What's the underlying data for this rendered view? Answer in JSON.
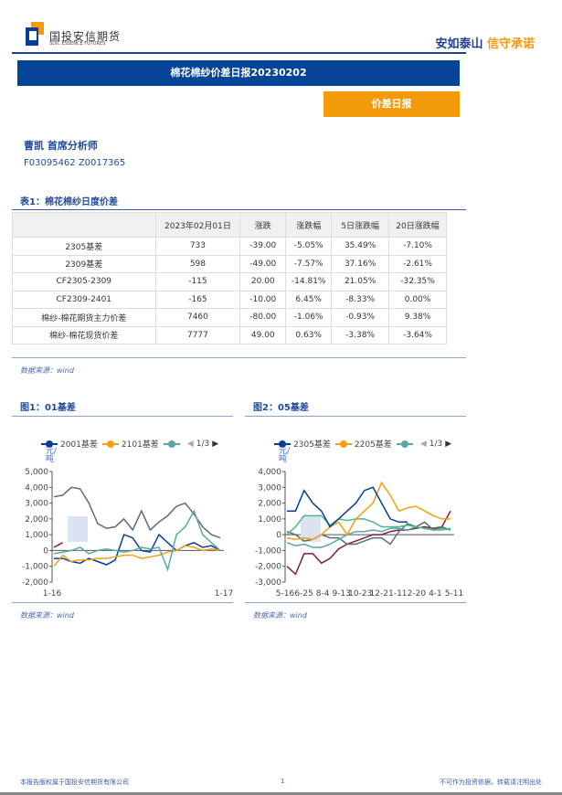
{
  "header": {
    "company_cn": "国投安信期货",
    "company_en": "SDIC ESSENCE FUTURES",
    "slogan_a": "安如泰山",
    "slogan_b": "信守承诺"
  },
  "banner": {
    "title": "棉花棉纱价差日报20230202",
    "tag": "价差日报"
  },
  "author": {
    "name": "曹凯 首席分析师",
    "ids": "F03095462 Z0017365"
  },
  "table": {
    "title": "表1：棉花棉纱日度价差",
    "headers": [
      "",
      "2023年02月01日",
      "涨跌",
      "涨跌幅",
      "5日涨跌幅",
      "20日涨跌幅"
    ],
    "rows": [
      [
        "2305基差",
        "733",
        "-39.00",
        "-5.05%",
        "35.49%",
        "-7.10%"
      ],
      [
        "2309基差",
        "598",
        "-49.00",
        "-7.57%",
        "37.16%",
        "-2.61%"
      ],
      [
        "CF2305-2309",
        "-115",
        "20.00",
        "-14.81%",
        "21.05%",
        "-32.35%"
      ],
      [
        "CF2309-2401",
        "-165",
        "-10.00",
        "6.45%",
        "-8.33%",
        "0.00%"
      ],
      [
        "棉纱-棉花期货主力价差",
        "7460",
        "-80.00",
        "-1.06%",
        "-0.93%",
        "9.38%"
      ],
      [
        "棉纱-棉花现货价差",
        "7777",
        "49.00",
        "0.63%",
        "-3.38%",
        "-3.64%"
      ]
    ],
    "source": "数据来源：wind"
  },
  "colors": {
    "navy": "#0a3d9a",
    "orange": "#f5a00f",
    "teal": "#5aa6a8",
    "gray": "#5c6b75",
    "maroon": "#7a1f45",
    "green": "#4cb88a"
  },
  "chart_data": [
    {
      "type": "line",
      "title": "图1：01基差",
      "unit": "元/吨",
      "pager": "1/3",
      "ylim": [
        -2000,
        5000
      ],
      "yticks": [
        "5,000",
        "4,000",
        "3,000",
        "2,000",
        "1,000",
        "0",
        "-1,000",
        "-2,000"
      ],
      "ytick_values": [
        5000,
        4000,
        3000,
        2000,
        1000,
        0,
        -1000,
        -2000
      ],
      "xticks": [
        "1-16",
        "1-17"
      ],
      "source": "数据来源：wind",
      "series": [
        {
          "name": "",
          "color": "gray",
          "values": [
            3400,
            3500,
            4000,
            3900,
            3000,
            1700,
            1400,
            1500,
            2000,
            1300,
            2500,
            1300,
            1800,
            2200,
            2800,
            3000,
            2300,
            1500,
            1000,
            800
          ]
        },
        {
          "name": "2001基差",
          "color": "navy",
          "values": [
            -500,
            -500,
            -700,
            -800,
            -500,
            -700,
            -900,
            -600,
            1000,
            800,
            0,
            -100,
            1000,
            500,
            0,
            300,
            500,
            200,
            300,
            0
          ]
        },
        {
          "name": "2101基差",
          "color": "orange",
          "values": [
            -1000,
            -300,
            -700,
            -600,
            -600,
            -500,
            -500,
            -400,
            -300,
            -300,
            -500,
            -400,
            -300,
            -100,
            0,
            300,
            200,
            0,
            100,
            0
          ]
        },
        {
          "name": "",
          "color": "teal",
          "values": [
            -200,
            -100,
            0,
            200,
            -200,
            0,
            100,
            0,
            -100,
            0,
            200,
            100,
            200,
            -1200,
            1000,
            1500,
            2500,
            1000,
            500,
            0
          ]
        },
        {
          "name": "",
          "color": "maroon",
          "values": [
            200,
            500,
            null,
            null,
            null,
            null,
            null,
            null,
            null,
            null,
            null,
            null,
            null,
            null,
            null,
            null,
            null,
            null,
            null,
            null
          ]
        }
      ],
      "legend": [
        {
          "name": "2001基差",
          "color": "navy"
        },
        {
          "name": "2101基差",
          "color": "orange"
        },
        {
          "name": "",
          "color": "teal"
        }
      ]
    },
    {
      "type": "line",
      "title": "图2：05基差",
      "unit": "元/吨",
      "pager": "1/3",
      "ylim": [
        -3000,
        4000
      ],
      "yticks": [
        "4,000",
        "3,000",
        "2,000",
        "1,000",
        "0",
        "-1,000",
        "-2,000",
        "-3,000"
      ],
      "ytick_values": [
        4000,
        3000,
        2000,
        1000,
        0,
        -1000,
        -2000,
        -3000
      ],
      "xticks": [
        "5-16",
        "6-25",
        "8-4",
        "9-13",
        "10-23",
        "12-2",
        "1-11",
        "2-20",
        "4-1",
        "5-11"
      ],
      "source": "数据来源：wind",
      "series": [
        {
          "name": "",
          "color": "maroon",
          "values": [
            -2000,
            -2500,
            -1200,
            -1200,
            -1800,
            -1500,
            -900,
            -600,
            -400,
            -200,
            0,
            0,
            200,
            300,
            300,
            400,
            500,
            400,
            500,
            1500
          ]
        },
        {
          "name": "",
          "color": "gray",
          "values": [
            200,
            0,
            -400,
            -300,
            0,
            -200,
            -200,
            -600,
            -600,
            -400,
            -200,
            -200,
            -600,
            200,
            700,
            500,
            800,
            300,
            500,
            300
          ]
        },
        {
          "name": "",
          "color": "teal",
          "values": [
            -500,
            -700,
            -600,
            -800,
            -800,
            -600,
            -300,
            0,
            200,
            200,
            300,
            200,
            400,
            400,
            300,
            500,
            400,
            300,
            400,
            300
          ]
        },
        {
          "name": "",
          "color": "green",
          "values": [
            0,
            500,
            1200,
            1200,
            1200,
            600,
            1000,
            900,
            1000,
            1000,
            800,
            500,
            500,
            500,
            600,
            500,
            400,
            300,
            300,
            400
          ]
        },
        {
          "name": "2205基差",
          "color": "orange",
          "values": [
            -200,
            -300,
            -200,
            -300,
            0,
            500,
            800,
            0,
            1000,
            1500,
            2000,
            3300,
            2500,
            1500,
            1700,
            1800,
            1500,
            1200,
            1000,
            1000
          ]
        },
        {
          "name": "2305基差",
          "color": "navy",
          "values": [
            1500,
            1500,
            2800,
            2000,
            1500,
            500,
            1000,
            1500,
            2000,
            2800,
            3000,
            2000,
            1000,
            800,
            800,
            null,
            null,
            null,
            null,
            null
          ]
        }
      ],
      "legend": [
        {
          "name": "2305基差",
          "color": "navy"
        },
        {
          "name": "2205基差",
          "color": "orange"
        },
        {
          "name": "",
          "color": "teal"
        }
      ]
    }
  ],
  "footer": {
    "left": "本报告版权属于国投安信期货有限公司",
    "page": "1",
    "right": "不可作为投资依据，转载请注明出处"
  }
}
